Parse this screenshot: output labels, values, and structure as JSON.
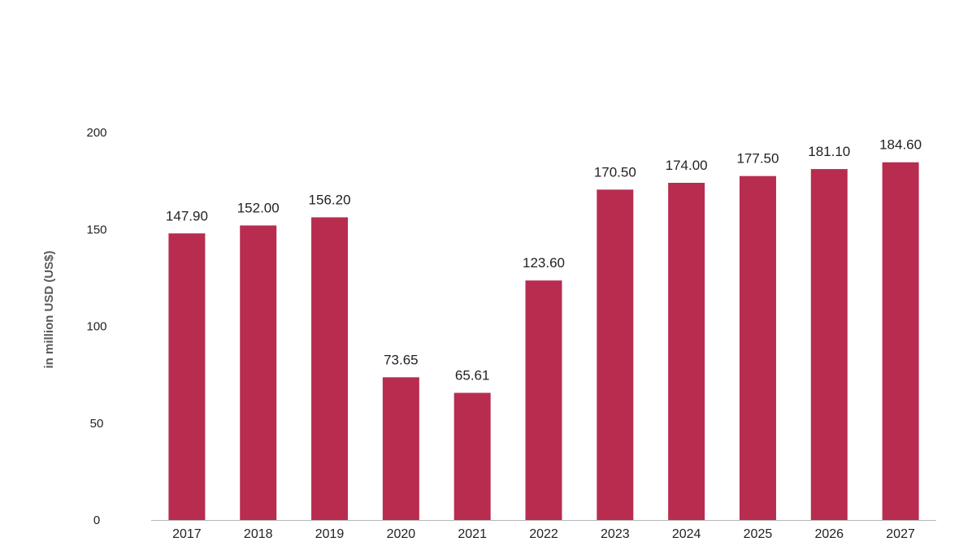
{
  "chart_data": {
    "type": "bar",
    "title": "",
    "xlabel": "",
    "ylabel": "in million USD (US$)",
    "categories": [
      "2017",
      "2018",
      "2019",
      "2020",
      "2021",
      "2022",
      "2023",
      "2024",
      "2025",
      "2026",
      "2027"
    ],
    "values": [
      147.9,
      152.0,
      156.2,
      73.65,
      65.61,
      123.6,
      170.5,
      174.0,
      177.5,
      181.1,
      184.6
    ],
    "value_labels": [
      "147.90",
      "152.00",
      "156.20",
      "73.65",
      "65.61",
      "123.60",
      "170.50",
      "174.00",
      "177.50",
      "181.10",
      "184.60"
    ],
    "ylim": [
      0,
      200
    ],
    "yticks": [
      0,
      50,
      100,
      150,
      200
    ],
    "grid": false,
    "legend": "none"
  },
  "colors": {
    "bar": "#b82c50",
    "axis": "#b8b8b8"
  }
}
